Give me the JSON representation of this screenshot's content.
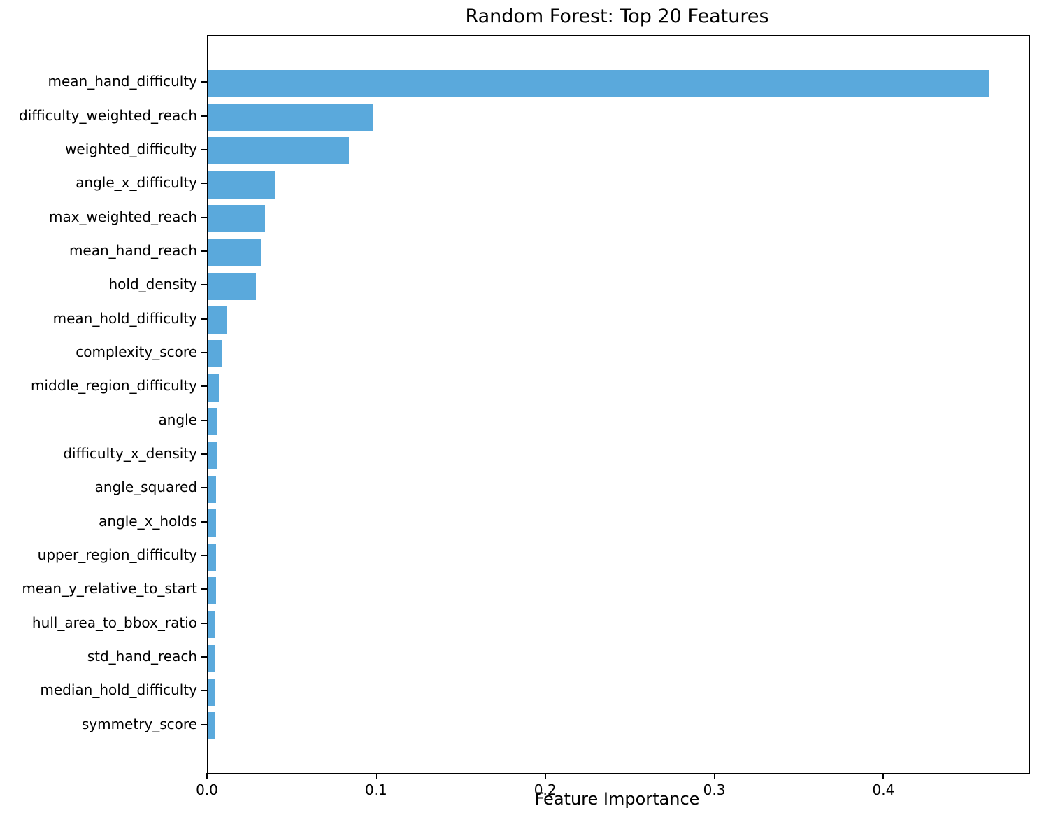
{
  "chart_data": {
    "type": "bar",
    "orientation": "horizontal",
    "title": "Random Forest: Top 20 Features",
    "xlabel": "Feature Importance",
    "ylabel": "",
    "categories": [
      "mean_hand_difficulty",
      "difficulty_weighted_reach",
      "weighted_difficulty",
      "angle_x_difficulty",
      "max_weighted_reach",
      "mean_hand_reach",
      "hold_density",
      "mean_hold_difficulty",
      "complexity_score",
      "middle_region_difficulty",
      "angle",
      "difficulty_x_density",
      "angle_squared",
      "angle_x_holds",
      "upper_region_difficulty",
      "mean_y_relative_to_start",
      "hull_area_to_bbox_ratio",
      "std_hand_reach",
      "median_hold_difficulty",
      "symmetry_score"
    ],
    "values": [
      0.462,
      0.097,
      0.083,
      0.0394,
      0.0335,
      0.031,
      0.0281,
      0.0106,
      0.0081,
      0.0063,
      0.0051,
      0.0051,
      0.0047,
      0.0047,
      0.0045,
      0.0046,
      0.004,
      0.0037,
      0.0038,
      0.0036
    ],
    "x_ticks": [
      0.0,
      0.1,
      0.2,
      0.3,
      0.4
    ],
    "x_tick_labels": [
      "0.0",
      "0.1",
      "0.2",
      "0.3",
      "0.4"
    ],
    "xlim": [
      0,
      0.485
    ],
    "bar_color": "#5AA9DC",
    "spine_color": "#000000",
    "grid": false,
    "legend": null
  }
}
